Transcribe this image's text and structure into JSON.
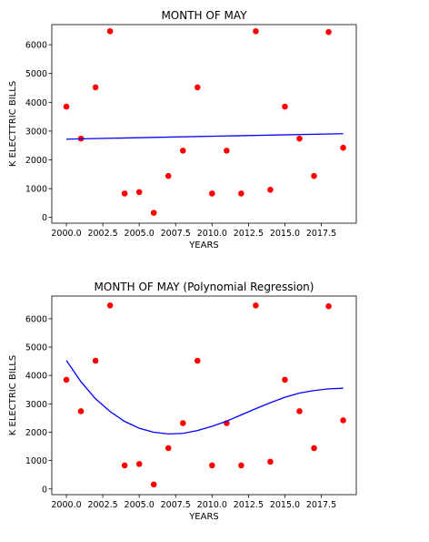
{
  "chart_data": [
    {
      "type": "scatter",
      "title": "MONTH OF MAY",
      "xlabel": "YEARS",
      "ylabel": "K ELECTTRIC BILLS",
      "xlim": [
        1999.0,
        2019.9
      ],
      "ylim": [
        -200,
        6700
      ],
      "xticks": [
        2000.0,
        2002.5,
        2005.0,
        2007.5,
        2010.0,
        2012.5,
        2015.0,
        2017.5
      ],
      "xtick_labels": [
        "2000.0",
        "2002.5",
        "2005.0",
        "2007.5",
        "2010.0",
        "2012.5",
        "2015.0",
        "2017.5"
      ],
      "yticks": [
        0,
        1000,
        2000,
        3000,
        4000,
        5000,
        6000
      ],
      "ytick_labels": [
        "0",
        "1000",
        "2000",
        "3000",
        "4000",
        "5000",
        "6000"
      ],
      "grid": false,
      "series": [
        {
          "kind": "points",
          "color": "#ff0000",
          "x": [
            2000,
            2001,
            2002,
            2003,
            2004,
            2005,
            2006,
            2007,
            2008,
            2009,
            2010,
            2011,
            2012,
            2013,
            2014,
            2015,
            2016,
            2017,
            2018,
            2019
          ],
          "y": [
            3850,
            2740,
            4520,
            6470,
            830,
            880,
            160,
            1440,
            2320,
            4520,
            830,
            2320,
            830,
            6470,
            960,
            3850,
            2740,
            1440,
            6440,
            2420
          ]
        },
        {
          "kind": "line",
          "color": "#0000ff",
          "x": [
            2000,
            2019
          ],
          "y": [
            2720,
            2910
          ]
        }
      ]
    },
    {
      "type": "scatter",
      "title": "MONTH OF MAY (Polynomial Regression)",
      "xlabel": "YEARS",
      "ylabel": "K ELECTRIC BILLS",
      "xlim": [
        1999.0,
        2019.9
      ],
      "ylim": [
        -200,
        6800
      ],
      "xticks": [
        2000.0,
        2002.5,
        2005.0,
        2007.5,
        2010.0,
        2012.5,
        2015.0,
        2017.5
      ],
      "xtick_labels": [
        "2000.0",
        "2002.5",
        "2005.0",
        "2007.5",
        "2010.0",
        "2012.5",
        "2015.0",
        "2017.5"
      ],
      "yticks": [
        0,
        1000,
        2000,
        3000,
        4000,
        5000,
        6000
      ],
      "ytick_labels": [
        "0",
        "1000",
        "2000",
        "3000",
        "4000",
        "5000",
        "6000"
      ],
      "grid": false,
      "series": [
        {
          "kind": "points",
          "color": "#ff0000",
          "x": [
            2000,
            2001,
            2002,
            2003,
            2004,
            2005,
            2006,
            2007,
            2008,
            2009,
            2010,
            2011,
            2012,
            2013,
            2014,
            2015,
            2016,
            2017,
            2018,
            2019
          ],
          "y": [
            3850,
            2740,
            4520,
            6470,
            830,
            880,
            160,
            1440,
            2320,
            4520,
            830,
            2320,
            830,
            6470,
            960,
            3850,
            2740,
            1440,
            6440,
            2420
          ]
        },
        {
          "kind": "line",
          "color": "#0000ff",
          "x": [
            2000,
            2001,
            2002,
            2003,
            2004,
            2005,
            2006,
            2007,
            2008,
            2009,
            2010,
            2011,
            2012,
            2013,
            2014,
            2015,
            2016,
            2017,
            2018,
            2019
          ],
          "y": [
            4530,
            3780,
            3180,
            2730,
            2380,
            2140,
            2000,
            1940,
            1960,
            2060,
            2210,
            2390,
            2610,
            2830,
            3040,
            3230,
            3380,
            3470,
            3530,
            3550
          ]
        }
      ]
    }
  ]
}
